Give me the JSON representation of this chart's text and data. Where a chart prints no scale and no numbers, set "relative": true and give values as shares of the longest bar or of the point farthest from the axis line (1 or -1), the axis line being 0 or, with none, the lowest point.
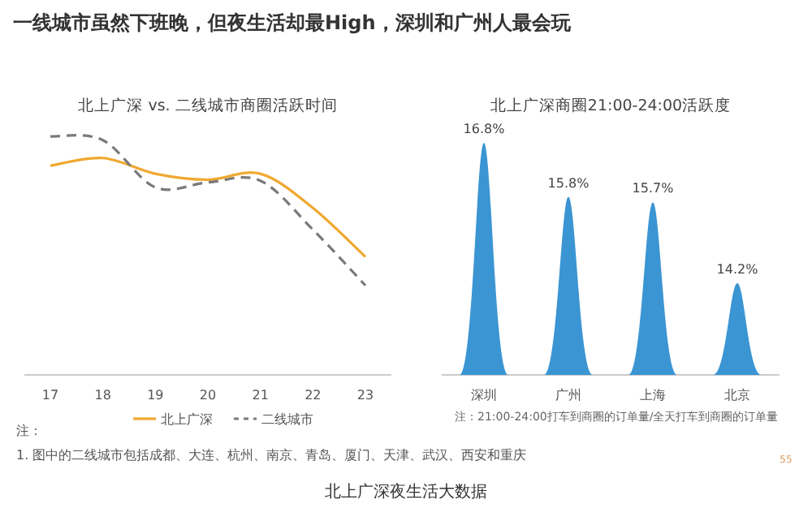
{
  "chart_data": [
    {
      "type": "other",
      "title": "一线城市虽然下班晚，但夜生活却最High，深圳和广州人最会玩",
      "annotations": [
        "注：",
        "1. 图中的二线城市包括成都、大连、杭州、南京、青岛、厦门、天津、武汉、西安和重庆",
        "北上广深夜生活大数据",
        "55"
      ]
    },
    {
      "type": "line",
      "title": "北上广深 vs. 二线城市商圈活跃时间",
      "categories": [
        "17",
        "18",
        "19",
        "20",
        "21",
        "22",
        "23"
      ],
      "relative": true,
      "legend": "bottom",
      "series": [
        {
          "name": "北上广深",
          "color": "#f0a830",
          "line_style": "solid",
          "values": [
            0.877,
            0.909,
            0.843,
            0.818,
            0.843,
            0.7,
            0.495
          ]
        },
        {
          "name": "二线城市",
          "color": "#7a7a7a",
          "line_style": "dashed",
          "values": [
            1,
            0.984,
            0.786,
            0.807,
            0.814,
            0.609,
            0.375
          ]
        }
      ]
    },
    {
      "type": "bar",
      "title": "北上广深商圈21:00-24:00活跃度",
      "categories": [
        "深圳",
        "广州",
        "上海",
        "北京"
      ],
      "values": [
        16.8,
        15.8,
        15.7,
        14.2
      ],
      "value_labels": [
        "16.8%",
        "15.8%",
        "15.7%",
        "14.2%"
      ],
      "color": "#3b95d3",
      "ylim": [
        12.5,
        16.8
      ],
      "tick_labels": false,
      "annotations": [
        "注：21:00-24:00打车到商圈的订单量/全天打车到商圈的订单量"
      ]
    }
  ]
}
